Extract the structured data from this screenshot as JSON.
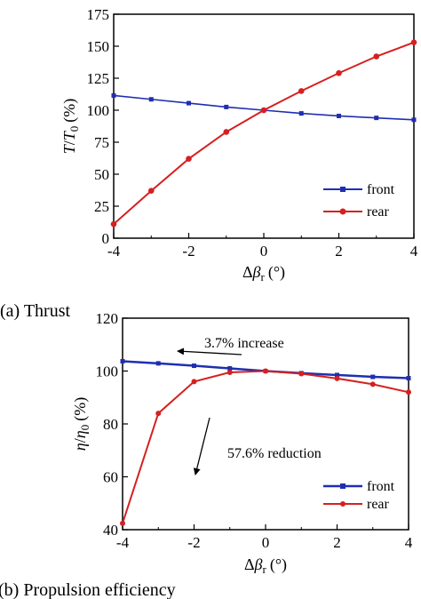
{
  "colors": {
    "front": "#1f2fb0",
    "rear": "#d62020",
    "axis": "#000000"
  },
  "captions": {
    "a": "(a) Thrust",
    "b": "(b) Propulsion efficiency"
  },
  "chart_data": [
    {
      "type": "line",
      "ylabel_lead": "T",
      "ylabel_mid": "/",
      "ylabel_sub_base": "T",
      "ylabel_sub": "0",
      "ylabel_unit": "(%)",
      "xlabel_delta": "Δ",
      "xlabel_beta": "β",
      "xlabel_sub": "r",
      "xlabel_unit": "(°)",
      "xlim": [
        -4,
        4
      ],
      "ylim": [
        0,
        175
      ],
      "xticks": [
        "-4",
        "-2",
        "0",
        "2",
        "4"
      ],
      "yticks": [
        "0",
        "25",
        "50",
        "75",
        "100",
        "125",
        "150",
        "175"
      ],
      "legend_position": "bottom-right",
      "x": [
        -4,
        -3,
        -2,
        -1,
        0,
        1,
        2,
        3,
        4
      ],
      "series": [
        {
          "name": "front",
          "values": [
            111.5,
            108.5,
            105.5,
            102.5,
            100,
            97.5,
            95.5,
            94,
            92.5
          ]
        },
        {
          "name": "rear",
          "values": [
            11,
            37,
            62,
            83,
            100,
            115,
            129,
            142,
            153
          ]
        }
      ]
    },
    {
      "type": "line",
      "ylabel_lead": "η",
      "ylabel_mid": "/",
      "ylabel_sub_base": "η",
      "ylabel_sub": "0",
      "ylabel_unit": "(%)",
      "xlabel_delta": "Δ",
      "xlabel_beta": "β",
      "xlabel_sub": "r",
      "xlabel_unit": "(°)",
      "xlim": [
        -4,
        4
      ],
      "ylim": [
        40,
        120
      ],
      "xticks": [
        "-4",
        "-2",
        "0",
        "2",
        "4"
      ],
      "yticks": [
        "40",
        "60",
        "80",
        "100",
        "120"
      ],
      "legend_position": "bottom-right",
      "annotations": [
        "3.7% increase",
        "57.6% reduction"
      ],
      "x": [
        -4,
        -3,
        -2,
        -1,
        0,
        1,
        2,
        3,
        4
      ],
      "series": [
        {
          "name": "front",
          "values": [
            103.7,
            102.9,
            102,
            101,
            100,
            99.2,
            98.5,
            97.8,
            97.3
          ]
        },
        {
          "name": "rear",
          "values": [
            42.4,
            84,
            96,
            99.5,
            100,
            99,
            97.2,
            95,
            92
          ]
        }
      ]
    }
  ]
}
